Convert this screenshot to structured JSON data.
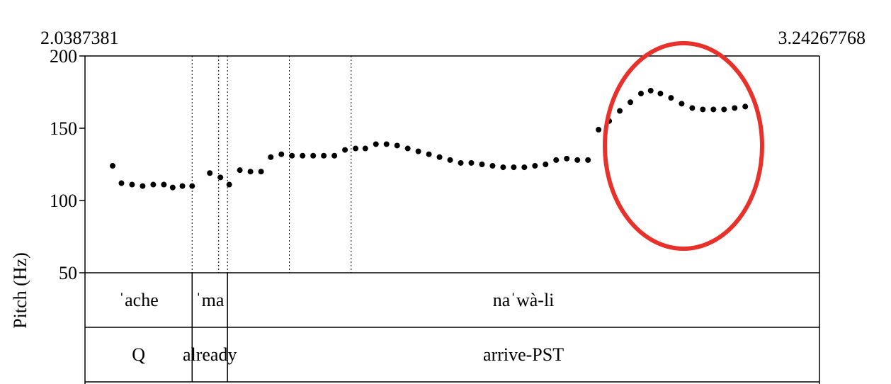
{
  "chart_data": {
    "type": "scatter",
    "xlim": [
      "2.0387381",
      "3.24267768"
    ],
    "ylim": [
      50,
      200
    ],
    "ylabel": "Pitch (Hz)",
    "yticks": [
      50,
      100,
      150,
      200
    ],
    "boundaries": [
      2.16,
      2.19,
      2.2,
      2.27,
      2.34
    ],
    "points": [
      [
        2.07,
        124
      ],
      [
        2.08,
        112
      ],
      [
        2.092,
        111
      ],
      [
        2.104,
        110
      ],
      [
        2.116,
        111
      ],
      [
        2.128,
        111
      ],
      [
        2.138,
        109
      ],
      [
        2.149,
        110
      ],
      [
        2.16,
        110
      ],
      [
        2.18,
        119
      ],
      [
        2.192,
        116
      ],
      [
        2.202,
        111
      ],
      [
        2.214,
        121
      ],
      [
        2.226,
        120
      ],
      [
        2.238,
        120
      ],
      [
        2.249,
        130
      ],
      [
        2.261,
        132
      ],
      [
        2.273,
        131
      ],
      [
        2.285,
        131
      ],
      [
        2.297,
        131
      ],
      [
        2.309,
        131
      ],
      [
        2.321,
        131
      ],
      [
        2.333,
        135
      ],
      [
        2.345,
        136
      ],
      [
        2.356,
        136
      ],
      [
        2.368,
        139
      ],
      [
        2.38,
        139
      ],
      [
        2.392,
        138
      ],
      [
        2.404,
        136
      ],
      [
        2.416,
        134
      ],
      [
        2.428,
        132
      ],
      [
        2.44,
        130
      ],
      [
        2.452,
        128
      ],
      [
        2.464,
        126
      ],
      [
        2.476,
        126
      ],
      [
        2.488,
        125
      ],
      [
        2.5,
        124
      ],
      [
        2.512,
        123
      ],
      [
        2.524,
        123
      ],
      [
        2.536,
        123
      ],
      [
        2.548,
        124
      ],
      [
        2.56,
        125
      ],
      [
        2.572,
        128
      ],
      [
        2.584,
        129
      ],
      [
        2.596,
        128
      ],
      [
        2.608,
        128
      ],
      [
        2.62,
        149
      ],
      [
        2.632,
        155
      ],
      [
        2.644,
        162
      ],
      [
        2.656,
        168
      ],
      [
        2.668,
        174
      ],
      [
        2.679,
        176
      ],
      [
        2.69,
        174
      ],
      [
        2.702,
        171
      ],
      [
        2.714,
        167
      ],
      [
        2.726,
        164
      ],
      [
        2.738,
        163
      ],
      [
        2.75,
        163
      ],
      [
        2.762,
        163
      ],
      [
        2.774,
        164
      ],
      [
        2.786,
        165
      ]
    ],
    "tiers": [
      {
        "name": "syllables",
        "intervals": [
          {
            "label": "ˈache",
            "start": 2.0387381,
            "end": 2.16
          },
          {
            "label": "ˈma",
            "start": 2.16,
            "end": 2.2
          },
          {
            "label": "naˈwà-li",
            "start": 2.2,
            "end": 3.24267768
          }
        ]
      },
      {
        "name": "gloss",
        "intervals": [
          {
            "label": "Q",
            "start": 2.0387381,
            "end": 2.16
          },
          {
            "label": "already",
            "start": 2.16,
            "end": 2.2
          },
          {
            "label": "arrive-PST",
            "start": 2.2,
            "end": 3.24267768
          }
        ]
      }
    ],
    "annotation": {
      "shape": "ellipse",
      "color": "#e8312a"
    }
  }
}
